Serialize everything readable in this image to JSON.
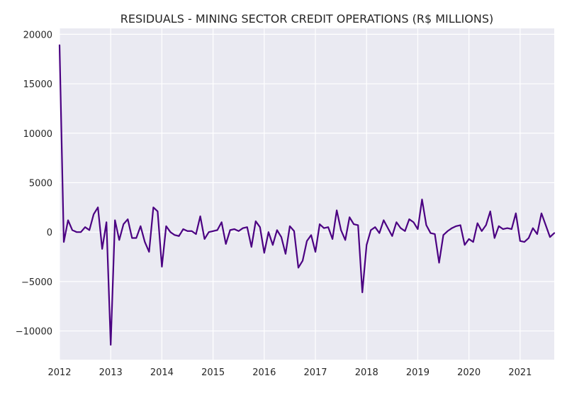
{
  "chart_data": {
    "type": "line",
    "title": "RESIDUALS - MINING SECTOR CREDIT OPERATIONS (R$ MILLIONS)",
    "xlabel": "",
    "ylabel": "",
    "x_ticks": [
      "2012",
      "2013",
      "2014",
      "2015",
      "2016",
      "2017",
      "2018",
      "2019",
      "2020",
      "2021"
    ],
    "y_ticks": [
      "20000",
      "15000",
      "10000",
      "5000",
      "0",
      "−5000",
      "−10000"
    ],
    "y_tick_values": [
      20000,
      15000,
      10000,
      5000,
      0,
      -5000,
      -10000
    ],
    "xlim": [
      "2012-01",
      "2021-09"
    ],
    "ylim": [
      -12900,
      20600
    ],
    "grid": true,
    "line_color": "#4b0082",
    "series": [
      {
        "name": "",
        "points": [
          [
            "2012-01",
            18900
          ],
          [
            "2012-02",
            -1000
          ],
          [
            "2012-03",
            1200
          ],
          [
            "2012-04",
            200
          ],
          [
            "2012-05",
            0
          ],
          [
            "2012-06",
            0
          ],
          [
            "2012-07",
            500
          ],
          [
            "2012-08",
            200
          ],
          [
            "2012-09",
            1800
          ],
          [
            "2012-10",
            2500
          ],
          [
            "2012-11",
            -1700
          ],
          [
            "2012-12",
            1000
          ],
          [
            "2013-01",
            -11400
          ],
          [
            "2013-02",
            1200
          ],
          [
            "2013-03",
            -800
          ],
          [
            "2013-04",
            800
          ],
          [
            "2013-05",
            1300
          ],
          [
            "2013-06",
            -600
          ],
          [
            "2013-07",
            -600
          ],
          [
            "2013-08",
            600
          ],
          [
            "2013-09",
            -1000
          ],
          [
            "2013-10",
            -2000
          ],
          [
            "2013-11",
            2500
          ],
          [
            "2013-12",
            2100
          ],
          [
            "2014-01",
            -3500
          ],
          [
            "2014-02",
            600
          ],
          [
            "2014-03",
            0
          ],
          [
            "2014-04",
            -300
          ],
          [
            "2014-05",
            -400
          ],
          [
            "2014-06",
            300
          ],
          [
            "2014-07",
            100
          ],
          [
            "2014-08",
            100
          ],
          [
            "2014-09",
            -200
          ],
          [
            "2014-10",
            1600
          ],
          [
            "2014-11",
            -700
          ],
          [
            "2014-12",
            0
          ],
          [
            "2015-01",
            100
          ],
          [
            "2015-02",
            200
          ],
          [
            "2015-03",
            1000
          ],
          [
            "2015-04",
            -1200
          ],
          [
            "2015-05",
            200
          ],
          [
            "2015-06",
            300
          ],
          [
            "2015-07",
            100
          ],
          [
            "2015-08",
            400
          ],
          [
            "2015-09",
            500
          ],
          [
            "2015-10",
            -1500
          ],
          [
            "2015-11",
            1100
          ],
          [
            "2015-12",
            500
          ],
          [
            "2016-01",
            -2100
          ],
          [
            "2016-02",
            0
          ],
          [
            "2016-03",
            -1300
          ],
          [
            "2016-04",
            200
          ],
          [
            "2016-05",
            -500
          ],
          [
            "2016-06",
            -2200
          ],
          [
            "2016-07",
            600
          ],
          [
            "2016-08",
            100
          ],
          [
            "2016-09",
            -3600
          ],
          [
            "2016-10",
            -2900
          ],
          [
            "2016-11",
            -900
          ],
          [
            "2016-12",
            -300
          ],
          [
            "2017-01",
            -2000
          ],
          [
            "2017-02",
            800
          ],
          [
            "2017-03",
            400
          ],
          [
            "2017-04",
            500
          ],
          [
            "2017-05",
            -700
          ],
          [
            "2017-06",
            2200
          ],
          [
            "2017-07",
            200
          ],
          [
            "2017-08",
            -800
          ],
          [
            "2017-09",
            1500
          ],
          [
            "2017-10",
            800
          ],
          [
            "2017-11",
            700
          ],
          [
            "2017-12",
            -6100
          ],
          [
            "2018-01",
            -1300
          ],
          [
            "2018-02",
            200
          ],
          [
            "2018-03",
            500
          ],
          [
            "2018-04",
            -100
          ],
          [
            "2018-05",
            1200
          ],
          [
            "2018-06",
            400
          ],
          [
            "2018-07",
            -400
          ],
          [
            "2018-08",
            1000
          ],
          [
            "2018-09",
            400
          ],
          [
            "2018-10",
            100
          ],
          [
            "2018-11",
            1300
          ],
          [
            "2018-12",
            1000
          ],
          [
            "2019-01",
            300
          ],
          [
            "2019-02",
            3300
          ],
          [
            "2019-03",
            700
          ],
          [
            "2019-04",
            -100
          ],
          [
            "2019-05",
            -200
          ],
          [
            "2019-06",
            -3100
          ],
          [
            "2019-07",
            -300
          ],
          [
            "2019-08",
            100
          ],
          [
            "2019-09",
            400
          ],
          [
            "2019-10",
            600
          ],
          [
            "2019-11",
            700
          ],
          [
            "2019-12",
            -1300
          ],
          [
            "2020-01",
            -700
          ],
          [
            "2020-02",
            -1000
          ],
          [
            "2020-03",
            900
          ],
          [
            "2020-04",
            100
          ],
          [
            "2020-05",
            700
          ],
          [
            "2020-06",
            2100
          ],
          [
            "2020-07",
            -600
          ],
          [
            "2020-08",
            600
          ],
          [
            "2020-09",
            300
          ],
          [
            "2020-10",
            400
          ],
          [
            "2020-11",
            300
          ],
          [
            "2020-12",
            1900
          ],
          [
            "2021-01",
            -900
          ],
          [
            "2021-02",
            -1000
          ],
          [
            "2021-03",
            -600
          ],
          [
            "2021-04",
            400
          ],
          [
            "2021-05",
            -200
          ],
          [
            "2021-06",
            1900
          ],
          [
            "2021-07",
            700
          ],
          [
            "2021-08",
            -500
          ],
          [
            "2021-09",
            -100
          ]
        ]
      }
    ]
  }
}
